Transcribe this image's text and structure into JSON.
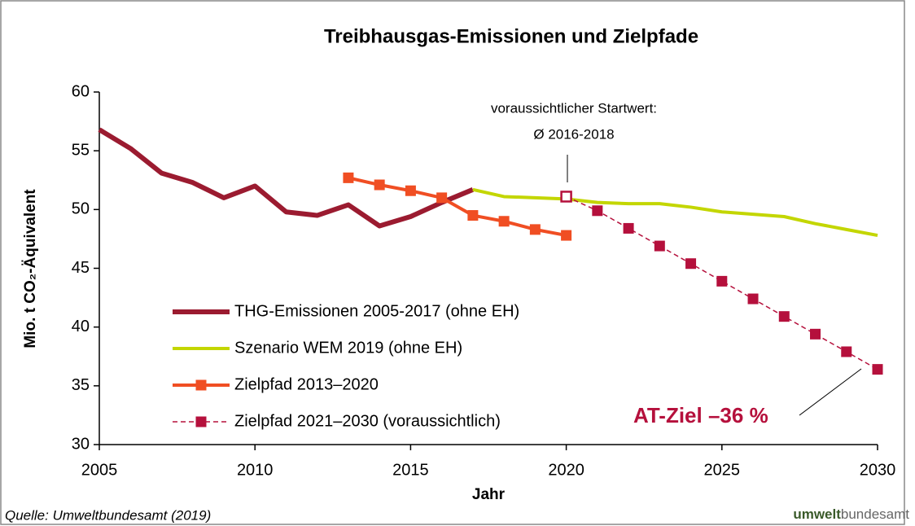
{
  "chart_data": {
    "type": "line",
    "title": "Treibhausgas-Emissionen und Zielpfade",
    "ylabel": "Mio. t CO₂-Äquivalent",
    "xlabel": "Jahr",
    "xlim": [
      2005,
      2030
    ],
    "xticks": [
      2005,
      2010,
      2015,
      2020,
      2025,
      2030
    ],
    "ylim": [
      30,
      60
    ],
    "yticks": [
      30,
      35,
      40,
      45,
      50,
      55,
      60
    ],
    "grid": false,
    "legend": "lower left",
    "series": [
      {
        "name": "THG-Emissionen 2005-2017 (ohne EH)",
        "color": "#9b1b30",
        "width": 6,
        "marker": "none",
        "dash": false,
        "x": [
          2005,
          2006,
          2007,
          2008,
          2009,
          2010,
          2011,
          2012,
          2013,
          2014,
          2015,
          2016,
          2017
        ],
        "values": [
          56.8,
          55.2,
          53.1,
          52.3,
          51.0,
          52.0,
          49.8,
          49.5,
          50.4,
          48.6,
          49.4,
          50.6,
          51.7
        ]
      },
      {
        "name": "Szenario WEM 2019 (ohne EH)",
        "color": "#c3d600",
        "width": 4,
        "marker": "none",
        "dash": false,
        "x": [
          2017,
          2018,
          2019,
          2020,
          2021,
          2022,
          2023,
          2024,
          2025,
          2026,
          2027,
          2028,
          2029,
          2030
        ],
        "values": [
          51.7,
          51.1,
          51.0,
          50.9,
          50.6,
          50.5,
          50.5,
          50.2,
          49.8,
          49.6,
          49.4,
          48.8,
          48.3,
          47.8
        ]
      },
      {
        "name": "Zielpfad 2013–2020",
        "color": "#f04e23",
        "width": 4,
        "marker": "square",
        "dash": false,
        "x": [
          2013,
          2014,
          2015,
          2016,
          2017,
          2018,
          2019,
          2020
        ],
        "values": [
          52.7,
          52.1,
          51.6,
          51.0,
          49.5,
          49.0,
          48.3,
          47.8
        ]
      },
      {
        "name": "Zielpfad 2021–2030 (voraussichtlich)",
        "color": "#b5103c",
        "width": 1.5,
        "marker": "square",
        "dash": true,
        "x": [
          2020,
          2021,
          2022,
          2023,
          2024,
          2025,
          2026,
          2027,
          2028,
          2029,
          2030
        ],
        "values": [
          51.1,
          49.9,
          48.4,
          46.9,
          45.4,
          43.9,
          42.4,
          40.9,
          39.4,
          37.9,
          36.4
        ]
      }
    ],
    "annotations": [
      "voraussichtlicher Startwert:",
      "Ø 2016-2018",
      "AT-Ziel –36 %"
    ],
    "source": "Quelle: Umweltbundesamt (2019)",
    "logo": [
      "umwelt",
      "bundesamt"
    ]
  }
}
